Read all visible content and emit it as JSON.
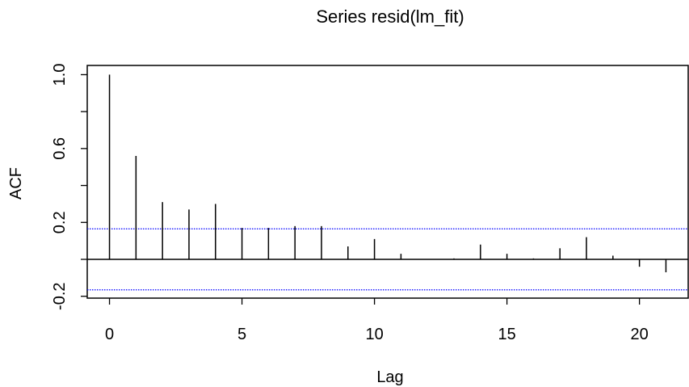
{
  "chart_data": {
    "type": "bar",
    "title": "Series  resid(lm_fit)",
    "xlabel": "Lag",
    "ylabel": "ACF",
    "lags": [
      0,
      1,
      2,
      3,
      4,
      5,
      6,
      7,
      8,
      9,
      10,
      11,
      12,
      13,
      14,
      15,
      16,
      17,
      18,
      19,
      20,
      21
    ],
    "acf": [
      1.0,
      0.56,
      0.31,
      0.27,
      0.3,
      0.17,
      0.17,
      0.18,
      0.18,
      0.07,
      0.11,
      0.03,
      0.0,
      0.005,
      0.08,
      0.03,
      0.005,
      0.06,
      0.12,
      0.02,
      -0.04,
      -0.07
    ],
    "confidence_bound": 0.165,
    "xlim": [
      -0.84,
      21.84
    ],
    "ylim": [
      -0.21,
      1.05
    ],
    "x_ticks": [
      0,
      5,
      10,
      15,
      20
    ],
    "x_tick_labels": [
      "0",
      "5",
      "10",
      "15",
      "20"
    ],
    "y_ticks": [
      -0.2,
      0.2,
      0.6,
      1.0
    ],
    "y_tick_labels": [
      "-0.2",
      "0.2",
      "0.6",
      "1.0"
    ],
    "y_minor_ticks": [
      0.0,
      0.4,
      0.8
    ],
    "grid": false,
    "legend": "none",
    "colors": {
      "spike": "#000000",
      "zero_line": "#000000",
      "confidence_line": "#0000ff",
      "frame": "#000000"
    }
  }
}
